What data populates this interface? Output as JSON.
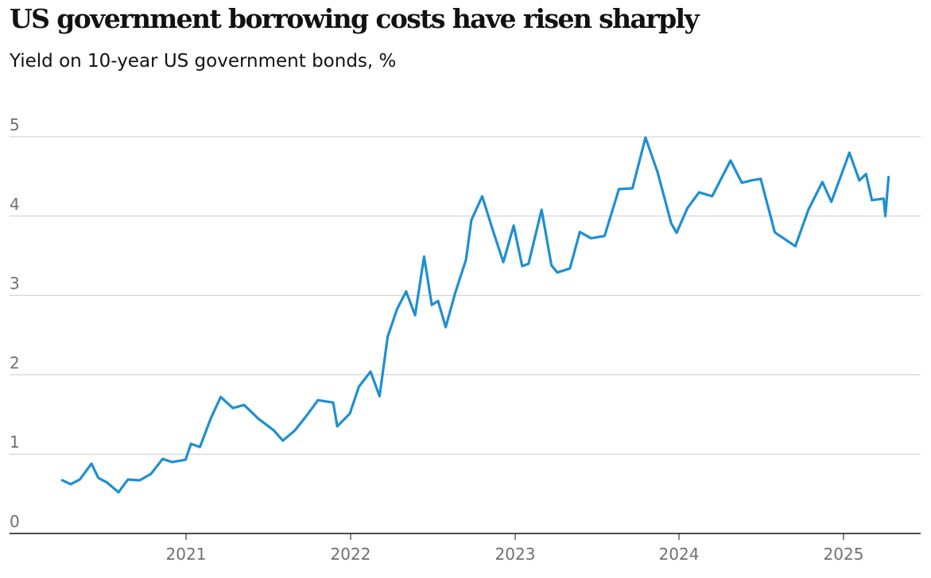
{
  "chart_data": {
    "type": "line",
    "title": "US government borrowing costs have risen sharply",
    "subtitle": "Yield on 10-year US government bonds, %",
    "xlabel": "",
    "ylabel": "",
    "ylim": [
      0,
      5
    ],
    "yticks": [
      "0",
      "1",
      "2",
      "3",
      "4",
      "5"
    ],
    "xticks": [
      "2021",
      "2022",
      "2023",
      "2024",
      "2025"
    ],
    "grid": true,
    "colors": {
      "line": "#1f8fd3",
      "grid": "#cccccc",
      "axis": "#121212"
    },
    "series": [
      {
        "values": [
          [
            "2020-04-01",
            0.67
          ],
          [
            "2020-04-20",
            0.62
          ],
          [
            "2020-05-10",
            0.68
          ],
          [
            "2020-06-05",
            0.88
          ],
          [
            "2020-06-20",
            0.7
          ],
          [
            "2020-07-10",
            0.64
          ],
          [
            "2020-08-04",
            0.52
          ],
          [
            "2020-08-25",
            0.68
          ],
          [
            "2020-09-20",
            0.67
          ],
          [
            "2020-10-15",
            0.75
          ],
          [
            "2020-11-10",
            0.94
          ],
          [
            "2020-12-01",
            0.9
          ],
          [
            "2020-12-31",
            0.93
          ],
          [
            "2021-01-12",
            1.13
          ],
          [
            "2021-02-01",
            1.09
          ],
          [
            "2021-02-25",
            1.45
          ],
          [
            "2021-03-19",
            1.72
          ],
          [
            "2021-04-15",
            1.58
          ],
          [
            "2021-05-10",
            1.62
          ],
          [
            "2021-06-10",
            1.45
          ],
          [
            "2021-07-15",
            1.3
          ],
          [
            "2021-08-04",
            1.17
          ],
          [
            "2021-08-31",
            1.3
          ],
          [
            "2021-09-28",
            1.5
          ],
          [
            "2021-10-21",
            1.68
          ],
          [
            "2021-11-24",
            1.65
          ],
          [
            "2021-12-03",
            1.35
          ],
          [
            "2021-12-31",
            1.51
          ],
          [
            "2022-01-20",
            1.85
          ],
          [
            "2022-02-15",
            2.04
          ],
          [
            "2022-03-07",
            1.73
          ],
          [
            "2022-03-25",
            2.48
          ],
          [
            "2022-04-15",
            2.83
          ],
          [
            "2022-05-05",
            3.05
          ],
          [
            "2022-05-25",
            2.75
          ],
          [
            "2022-06-14",
            3.49
          ],
          [
            "2022-07-01",
            2.88
          ],
          [
            "2022-07-15",
            2.93
          ],
          [
            "2022-08-01",
            2.6
          ],
          [
            "2022-08-22",
            3.03
          ],
          [
            "2022-09-15",
            3.45
          ],
          [
            "2022-09-27",
            3.95
          ],
          [
            "2022-10-21",
            4.25
          ],
          [
            "2022-11-15",
            3.8
          ],
          [
            "2022-12-07",
            3.42
          ],
          [
            "2022-12-30",
            3.88
          ],
          [
            "2023-01-18",
            3.37
          ],
          [
            "2023-02-01",
            3.4
          ],
          [
            "2023-03-02",
            4.08
          ],
          [
            "2023-03-24",
            3.38
          ],
          [
            "2023-04-06",
            3.29
          ],
          [
            "2023-05-04",
            3.34
          ],
          [
            "2023-05-26",
            3.8
          ],
          [
            "2023-06-20",
            3.72
          ],
          [
            "2023-07-20",
            3.75
          ],
          [
            "2023-08-21",
            4.34
          ],
          [
            "2023-09-20",
            4.35
          ],
          [
            "2023-10-19",
            4.99
          ],
          [
            "2023-11-15",
            4.55
          ],
          [
            "2023-12-15",
            3.91
          ],
          [
            "2023-12-27",
            3.79
          ],
          [
            "2024-01-20",
            4.1
          ],
          [
            "2024-02-15",
            4.3
          ],
          [
            "2024-03-15",
            4.25
          ],
          [
            "2024-04-25",
            4.7
          ],
          [
            "2024-05-20",
            4.42
          ],
          [
            "2024-06-10",
            4.45
          ],
          [
            "2024-07-01",
            4.47
          ],
          [
            "2024-08-01",
            3.8
          ],
          [
            "2024-08-05",
            3.78
          ],
          [
            "2024-09-16",
            3.62
          ],
          [
            "2024-10-15",
            4.08
          ],
          [
            "2024-11-15",
            4.43
          ],
          [
            "2024-12-05",
            4.18
          ],
          [
            "2025-01-14",
            4.8
          ],
          [
            "2025-02-05",
            4.45
          ],
          [
            "2025-02-20",
            4.53
          ],
          [
            "2025-03-05",
            4.2
          ],
          [
            "2025-03-31",
            4.22
          ],
          [
            "2025-04-04",
            4.0
          ],
          [
            "2025-04-11",
            4.49
          ]
        ]
      }
    ]
  }
}
